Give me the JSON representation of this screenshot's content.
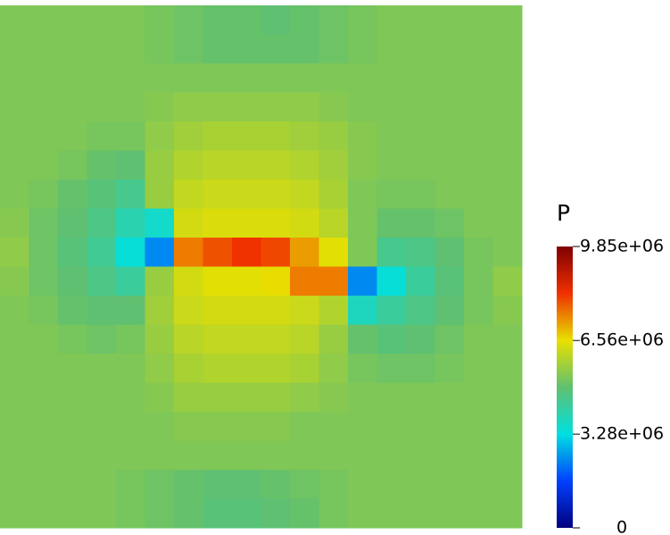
{
  "chart_data": {
    "type": "heatmap",
    "colorbar_title": "P",
    "zlim": [
      0,
      9850000
    ],
    "zticks": [
      {
        "value": 0,
        "label": "0"
      },
      {
        "value": 3280000,
        "label": "3.28e+06"
      },
      {
        "value": 6560000,
        "label": "6.56e+06"
      },
      {
        "value": 9850000,
        "label": "9.85e+06"
      }
    ],
    "colormap": [
      "#00007f",
      "#0040ff",
      "#00e0e0",
      "#60c070",
      "#e8e000",
      "#f03000",
      "#800000"
    ],
    "grid": {
      "values": [
        [
          5300000.0,
          5300000.0,
          5300000.0,
          5300000.0,
          5300000.0,
          5200000.0,
          5100000.0,
          5000000.0,
          5000000.0,
          4900000.0,
          5000000.0,
          5100000.0,
          5200000.0,
          5300000.0,
          5300000.0,
          5300000.0,
          5300000.0,
          5300000.0
        ],
        [
          5300000.0,
          5300000.0,
          5300000.0,
          5300000.0,
          5300000.0,
          5200000.0,
          5100000.0,
          5000000.0,
          5000000.0,
          5000000.0,
          5000000.0,
          5100000.0,
          5200000.0,
          5300000.0,
          5300000.0,
          5300000.0,
          5300000.0,
          5300000.0
        ],
        [
          5300000.0,
          5300000.0,
          5300000.0,
          5300000.0,
          5300000.0,
          5300000.0,
          5300000.0,
          5300000.0,
          5300000.0,
          5300000.0,
          5300000.0,
          5300000.0,
          5300000.0,
          5300000.0,
          5300000.0,
          5300000.0,
          5300000.0,
          5300000.0
        ],
        [
          5300000.0,
          5300000.0,
          5300000.0,
          5300000.0,
          5300000.0,
          5400000.0,
          5500000.0,
          5500000.0,
          5500000.0,
          5500000.0,
          5500000.0,
          5400000.0,
          5300000.0,
          5300000.0,
          5300000.0,
          5300000.0,
          5300000.0,
          5300000.0
        ],
        [
          5300000.0,
          5300000.0,
          5300000.0,
          5200000.0,
          5200000.0,
          5500000.0,
          5700000.0,
          5800000.0,
          5800000.0,
          5800000.0,
          5700000.0,
          5600000.0,
          5400000.0,
          5300000.0,
          5300000.0,
          5300000.0,
          5300000.0,
          5300000.0
        ],
        [
          5300000.0,
          5300000.0,
          5200000.0,
          5000000.0,
          4900000.0,
          5600000.0,
          5900000.0,
          6000000.0,
          6000000.0,
          6000000.0,
          5900000.0,
          5700000.0,
          5400000.0,
          5300000.0,
          5300000.0,
          5300000.0,
          5300000.0,
          5300000.0
        ],
        [
          5300000.0,
          5200000.0,
          5000000.0,
          4800000.0,
          4500000.0,
          5600000.0,
          6100000.0,
          6200000.0,
          6200000.0,
          6200000.0,
          6100000.0,
          5800000.0,
          5300000.0,
          5200000.0,
          5200000.0,
          5300000.0,
          5300000.0,
          5300000.0
        ],
        [
          5400000.0,
          5100000.0,
          4900000.0,
          4600000.0,
          4000000.0,
          3600000.0,
          6300000.0,
          6400000.0,
          6400000.0,
          6400000.0,
          6300000.0,
          6000000.0,
          5300000.0,
          5000000.0,
          5000000.0,
          5100000.0,
          5300000.0,
          5300000.0
        ],
        [
          5500000.0,
          5100000.0,
          4800000.0,
          4400000.0,
          3400000.0,
          2400000.0,
          7500000.0,
          7900000.0,
          8200000.0,
          8000000.0,
          7200000.0,
          6500000.0,
          5300000.0,
          4500000.0,
          4600000.0,
          4900000.0,
          5200000.0,
          5300000.0
        ],
        [
          5400000.0,
          5100000.0,
          4900000.0,
          4600000.0,
          4300000.0,
          5600000.0,
          6300000.0,
          6500000.0,
          6500000.0,
          6600000.0,
          7500000.0,
          7500000.0,
          2400000.0,
          3400000.0,
          4300000.0,
          4800000.0,
          5200000.0,
          5500000.0
        ],
        [
          5300000.0,
          5200000.0,
          5000000.0,
          4900000.0,
          4900000.0,
          5700000.0,
          6200000.0,
          6300000.0,
          6300000.0,
          6300000.0,
          6200000.0,
          5900000.0,
          3800000.0,
          4300000.0,
          4600000.0,
          4900000.0,
          5200000.0,
          5400000.0
        ],
        [
          5300000.0,
          5300000.0,
          5200000.0,
          5100000.0,
          5200000.0,
          5600000.0,
          6000000.0,
          6100000.0,
          6100000.0,
          6100000.0,
          6000000.0,
          5600000.0,
          5000000.0,
          4800000.0,
          4900000.0,
          5100000.0,
          5300000.0,
          5300000.0
        ],
        [
          5300000.0,
          5300000.0,
          5300000.0,
          5300000.0,
          5300000.0,
          5500000.0,
          5800000.0,
          5900000.0,
          5900000.0,
          5900000.0,
          5800000.0,
          5500000.0,
          5200000.0,
          5100000.0,
          5100000.0,
          5200000.0,
          5300000.0,
          5300000.0
        ],
        [
          5300000.0,
          5300000.0,
          5300000.0,
          5300000.0,
          5300000.0,
          5400000.0,
          5600000.0,
          5600000.0,
          5600000.0,
          5600000.0,
          5500000.0,
          5400000.0,
          5300000.0,
          5300000.0,
          5300000.0,
          5300000.0,
          5300000.0,
          5300000.0
        ],
        [
          5300000.0,
          5300000.0,
          5300000.0,
          5300000.0,
          5300000.0,
          5300000.0,
          5400000.0,
          5400000.0,
          5400000.0,
          5400000.0,
          5300000.0,
          5300000.0,
          5300000.0,
          5300000.0,
          5300000.0,
          5300000.0,
          5300000.0,
          5300000.0
        ],
        [
          5300000.0,
          5300000.0,
          5300000.0,
          5300000.0,
          5300000.0,
          5300000.0,
          5300000.0,
          5300000.0,
          5300000.0,
          5300000.0,
          5300000.0,
          5300000.0,
          5300000.0,
          5300000.0,
          5300000.0,
          5300000.0,
          5300000.0,
          5300000.0
        ],
        [
          5300000.0,
          5300000.0,
          5300000.0,
          5300000.0,
          5200000.0,
          5100000.0,
          5000000.0,
          4900000.0,
          4900000.0,
          5000000.0,
          5100000.0,
          5200000.0,
          5300000.0,
          5300000.0,
          5300000.0,
          5300000.0,
          5300000.0,
          5300000.0
        ],
        [
          5300000.0,
          5300000.0,
          5300000.0,
          5300000.0,
          5200000.0,
          5100000.0,
          5000000.0,
          4800000.0,
          4800000.0,
          4900000.0,
          5000000.0,
          5200000.0,
          5300000.0,
          5300000.0,
          5300000.0,
          5300000.0,
          5300000.0,
          5300000.0
        ]
      ]
    }
  }
}
